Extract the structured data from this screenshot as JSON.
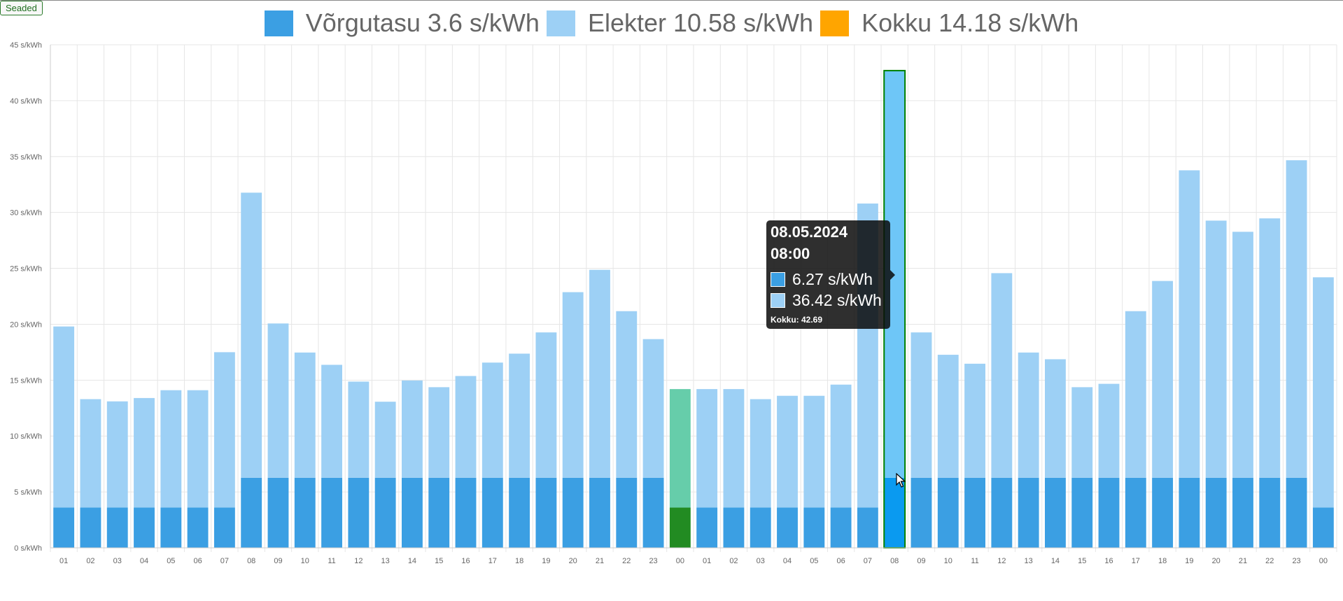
{
  "toolbar": {
    "settings_label": "Seaded"
  },
  "legend": [
    {
      "label": "Võrgutasu 3.6 s/kWh",
      "color": "#3b9fe3"
    },
    {
      "label": "Elekter 10.58 s/kWh",
      "color": "#9dd0f5"
    },
    {
      "label": "Kokku 14.18 s/kWh",
      "color": "#ffa500"
    }
  ],
  "tooltip": {
    "date": "08.05.2024",
    "time": "08:00",
    "items": [
      {
        "value": "6.27 s/kWh",
        "color": "#3b9fe3"
      },
      {
        "value": "36.42 s/kWh",
        "color": "#9dd0f5"
      }
    ],
    "footer": "Kokku: 42.69"
  },
  "colors": {
    "network": "#3b9fe3",
    "energy": "#9dd0f5",
    "current_network": "#228b22",
    "current_energy": "#66cdaa",
    "hover_network": "#0a9af0",
    "hover_energy": "#6ec6f7",
    "hover_border": "#008000",
    "grid": "#e6e6e6",
    "tick": "#666666"
  },
  "chart_data": {
    "type": "bar",
    "stacked": true,
    "categories": [
      "01",
      "02",
      "03",
      "04",
      "05",
      "06",
      "07",
      "08",
      "09",
      "10",
      "11",
      "12",
      "13",
      "14",
      "15",
      "16",
      "17",
      "18",
      "19",
      "20",
      "21",
      "22",
      "23",
      "00",
      "01",
      "02",
      "03",
      "04",
      "05",
      "06",
      "07",
      "08",
      "09",
      "10",
      "11",
      "12",
      "13",
      "14",
      "15",
      "16",
      "17",
      "18",
      "19",
      "20",
      "21",
      "22",
      "23",
      "00"
    ],
    "series": [
      {
        "name": "Võrgutasu",
        "values": [
          3.6,
          3.6,
          3.6,
          3.6,
          3.6,
          3.6,
          3.6,
          6.27,
          6.27,
          6.27,
          6.27,
          6.27,
          6.27,
          6.27,
          6.27,
          6.27,
          6.27,
          6.27,
          6.27,
          6.27,
          6.27,
          6.27,
          6.27,
          3.6,
          3.6,
          3.6,
          3.6,
          3.6,
          3.6,
          3.6,
          3.6,
          6.27,
          6.27,
          6.27,
          6.27,
          6.27,
          6.27,
          6.27,
          6.27,
          6.27,
          6.27,
          6.27,
          6.27,
          6.27,
          6.27,
          6.27,
          6.27,
          3.6
        ]
      },
      {
        "name": "Elekter",
        "values": [
          16.2,
          9.7,
          9.5,
          9.8,
          10.5,
          10.5,
          13.9,
          25.5,
          13.8,
          11.2,
          10.1,
          8.6,
          6.8,
          8.7,
          8.1,
          9.1,
          10.3,
          11.1,
          13.0,
          16.6,
          18.6,
          14.9,
          12.4,
          10.6,
          10.6,
          10.6,
          9.7,
          10.0,
          10.0,
          11.0,
          27.2,
          36.42,
          13.0,
          11.0,
          10.2,
          18.3,
          11.2,
          10.6,
          8.1,
          8.4,
          14.9,
          17.6,
          27.5,
          23.0,
          22.0,
          23.2,
          28.4,
          20.6
        ]
      }
    ],
    "y_tick_labels": [
      "0 s/kWh",
      "5 s/kWh",
      "10 s/kWh",
      "15 s/kWh",
      "20 s/kWh",
      "25 s/kWh",
      "30 s/kWh",
      "35 s/kWh",
      "40 s/kWh",
      "45 s/kWh"
    ],
    "ylim": [
      0,
      45
    ],
    "current_index": 23,
    "hover_index": 31,
    "grid": true,
    "legend_position": "top-center"
  }
}
